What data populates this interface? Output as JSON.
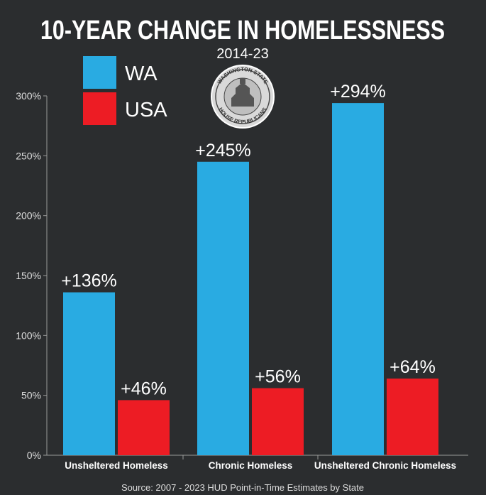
{
  "chart_data": {
    "type": "bar",
    "title": "10-YEAR CHANGE IN HOMELESSNESS",
    "subtitle": "2014-23",
    "categories": [
      "Unsheltered Homeless",
      "Chronic Homeless",
      "Unsheltered Chronic Homeless"
    ],
    "series": [
      {
        "name": "WA",
        "values": [
          136,
          245,
          294
        ],
        "color": "#29abe2"
      },
      {
        "name": "USA",
        "values": [
          46,
          56,
          64
        ],
        "color": "#ed1c24"
      }
    ],
    "data_labels": [
      [
        "+136%",
        "+245%",
        "+294%"
      ],
      [
        "+46%",
        "+56%",
        "+64%"
      ]
    ],
    "ylim": [
      0,
      300
    ],
    "yticks": [
      "0%",
      "50%",
      "100%",
      "150%",
      "200%",
      "250%",
      "300%"
    ],
    "ytick_values": [
      0,
      50,
      100,
      150,
      200,
      250,
      300
    ],
    "xlabel": "",
    "ylabel": "",
    "legend_position": "top-left",
    "source": "Source: 2007 - 2023 HUD Point-in-Time Estimates by State",
    "seal_text_top": "WASHINGTON STATE",
    "seal_text_bottom": "HOUSE REPUBLICANS"
  }
}
